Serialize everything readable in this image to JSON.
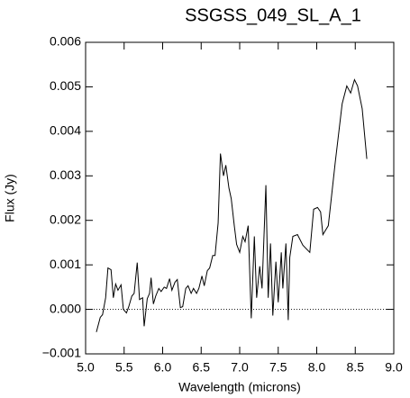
{
  "chart_data": {
    "type": "line",
    "title": "SSGSS_049_SL_A_1",
    "x_label": "Wavelength (microns)",
    "y_label": "Flux (Jy)",
    "xlim": [
      5,
      9
    ],
    "ylim": [
      -0.001,
      0.006
    ],
    "xticks": [
      {
        "value": 5,
        "label": "5.0"
      },
      5.5,
      {
        "value": 6,
        "label": "6.0"
      },
      6.5,
      {
        "value": 7,
        "label": "7.0"
      },
      7.5,
      {
        "value": 8,
        "label": "8.0"
      },
      8.5,
      {
        "value": 9,
        "label": "9.0"
      }
    ],
    "yticks": [
      {
        "value": -0.001,
        "label": "−0.001"
      },
      {
        "value": 0,
        "label": "0.000"
      },
      0.001,
      0.002,
      0.003,
      0.004,
      0.005,
      0.006
    ],
    "zero_line": true,
    "color": "#000000",
    "x": [
      5.14,
      5.19,
      5.22,
      5.26,
      5.29,
      5.33,
      5.36,
      5.39,
      5.42,
      5.46,
      5.49,
      5.53,
      5.56,
      5.6,
      5.63,
      5.67,
      5.7,
      5.74,
      5.76,
      5.8,
      5.83,
      5.85,
      5.88,
      5.91,
      5.95,
      5.98,
      6.02,
      6.05,
      6.09,
      6.12,
      6.16,
      6.19,
      6.23,
      6.26,
      6.3,
      6.33,
      6.37,
      6.4,
      6.44,
      6.47,
      6.51,
      6.54,
      6.58,
      6.61,
      6.65,
      6.68,
      6.72,
      6.75,
      6.79,
      6.82,
      6.86,
      6.89,
      6.93,
      6.96,
      7.0,
      7.04,
      7.07,
      7.11,
      7.15,
      7.19,
      7.22,
      7.26,
      7.29,
      7.34,
      7.37,
      7.4,
      7.43,
      7.47,
      7.5,
      7.54,
      7.56,
      7.6,
      7.63,
      7.65,
      7.69,
      7.75,
      7.82,
      7.91,
      7.96,
      8.01,
      8.05,
      8.08,
      8.15,
      8.24,
      8.33,
      8.39,
      8.44,
      8.49,
      8.53,
      8.59,
      8.65
    ],
    "values": [
      -0.00051,
      -0.00018,
      -0.00012,
      0.00026,
      0.00093,
      0.00089,
      0.00026,
      0.00057,
      0.00043,
      0.00055,
      0,
      -8e-05,
      6e-05,
      0.0003,
      0.00036,
      0.00105,
      0.00022,
      0.00026,
      -0.00038,
      0.00024,
      0.00036,
      0.00071,
      0.00012,
      0.0003,
      0.00047,
      0.0004,
      0.0005,
      0.00047,
      0.00069,
      0.00043,
      0.00061,
      0.00067,
      4e-05,
      6e-05,
      0.00047,
      0.00053,
      0.00036,
      0.00047,
      0.00036,
      0.00047,
      0.00075,
      0.00053,
      0.00087,
      0.00093,
      0.00121,
      0.00121,
      0.00194,
      0.0035,
      0.003,
      0.00324,
      0.00273,
      0.00249,
      0.00188,
      0.00146,
      0.00128,
      0.00164,
      0.00152,
      0.00188,
      -0.0002,
      0.00164,
      0.00026,
      0.00097,
      0.00047,
      0.00279,
      0.00026,
      0.00148,
      -0.00014,
      0.00107,
      0.00016,
      0.00128,
      0.00047,
      0.00148,
      -0.00024,
      0.00117,
      0.00164,
      0.00168,
      0.00144,
      0.00128,
      0.00225,
      0.00229,
      0.00219,
      0.00168,
      0.00188,
      0.0033,
      0.00462,
      0.00502,
      0.00486,
      0.00516,
      0.00502,
      0.00451,
      0.00338
    ]
  }
}
